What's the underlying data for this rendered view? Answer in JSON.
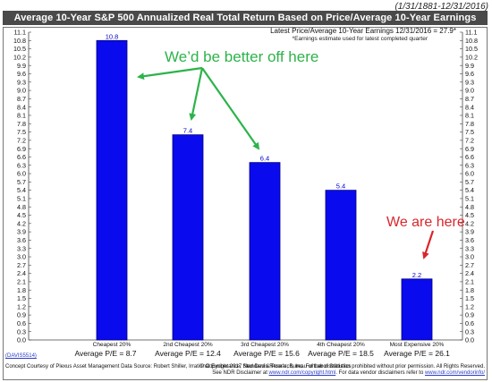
{
  "date_range": "(1/31/1881-12/31/2016)",
  "latest_line": "Latest Price/Average 10-Year Earnings 12/31/2016 = 27.9*",
  "estimate_note": "*Earnings estimate used for latest completed quarter",
  "annotation_green": "We’d be better off here",
  "annotation_red": "We are here",
  "average_pe": [
    "Average P/E = 8.7",
    "Average P/E = 12.4",
    "Average P/E = 15.6",
    "Average P/E = 18.5",
    "Average P/E = 26.1"
  ],
  "code_link": "(DAVIS5514)",
  "footer": {
    "concept": "Concept Courtesy of Plexus Asset Management Data Source: Robert Shiller, Irrational Exuberance, Standard & Poor’s, Bureau of Labor Statistics",
    "copyright": "© Copyright 2017 Ned Davis Research, Inc.  Further distribution prohibited without prior permission.  All Rights Reserved.",
    "disclaimer_prefix": "See NDR Disclaimer at",
    "disclaimer_url1": "www.ndr.com/copyright.html",
    "disclaimer_mid": ".  For data vendor disclaimers refer to",
    "disclaimer_url2": "www.ndr.com/vendorinfo/"
  },
  "colors": {
    "bar": "#0a0aee",
    "bar_edge": "#00007a",
    "green": "#2db34a",
    "red": "#d9262b",
    "title_bg": "#4a4a4a"
  },
  "chart_data": {
    "type": "bar",
    "title": "Average 10-Year S&P 500 Annualized Real Total Return Based on Price/Average 10-Year Earnings",
    "categories": [
      "Cheapest 20%",
      "2nd Cheapest 20%",
      "3rd Cheapest 20%",
      "4th Cheapest 20%",
      "Most Expensive 20%"
    ],
    "values": [
      10.8,
      7.4,
      6.4,
      5.4,
      2.2
    ],
    "value_labels": [
      "10.8",
      "7.4",
      "6.4",
      "5.4",
      "2.2"
    ],
    "ylim": [
      0.0,
      11.1
    ],
    "yticks": [
      "0.0",
      "0.3",
      "0.6",
      "0.9",
      "1.2",
      "1.5",
      "1.8",
      "2.1",
      "2.4",
      "2.7",
      "3.0",
      "3.3",
      "3.6",
      "3.9",
      "4.2",
      "4.5",
      "4.8",
      "5.1",
      "5.4",
      "5.7",
      "6.0",
      "6.3",
      "6.6",
      "6.9",
      "7.2",
      "7.5",
      "7.8",
      "8.1",
      "8.4",
      "8.7",
      "9.0",
      "9.3",
      "9.6",
      "9.9",
      "10.2",
      "10.5",
      "10.8",
      "11.1"
    ],
    "xlabel": "",
    "ylabel": "",
    "grid": false,
    "legend": "none"
  }
}
